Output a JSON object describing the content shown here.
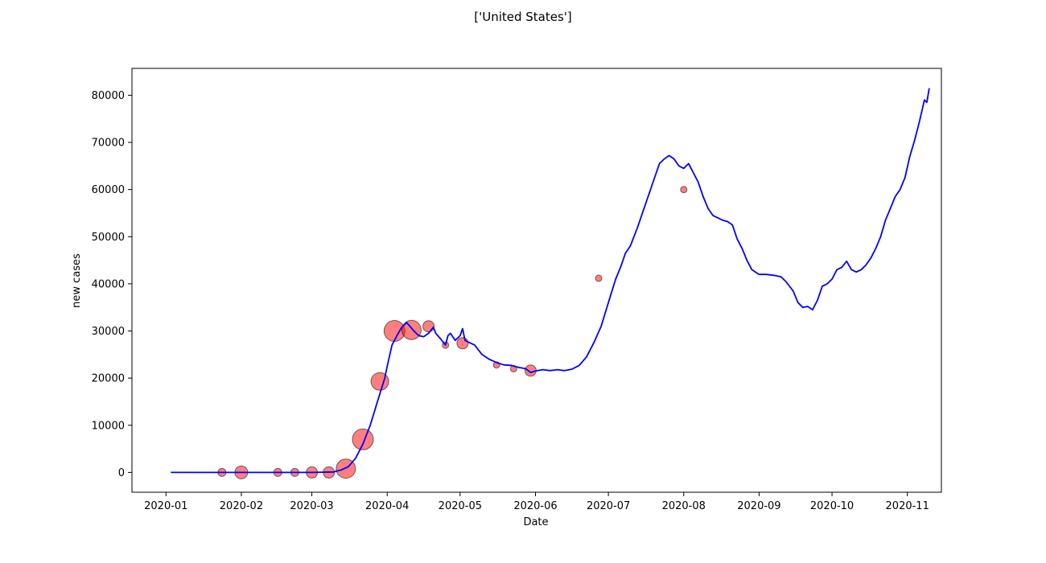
{
  "chart_data": {
    "type": "line",
    "title": "['United States']",
    "xlabel": "Date",
    "ylabel": "new cases",
    "xlim": [
      "2019-12-18",
      "2020-11-15"
    ],
    "ylim": [
      -4200,
      85700
    ],
    "x_ticks": [
      "2020-01",
      "2020-02",
      "2020-03",
      "2020-04",
      "2020-05",
      "2020-06",
      "2020-07",
      "2020-08",
      "2020-09",
      "2020-10",
      "2020-11"
    ],
    "y_ticks": [
      0,
      10000,
      20000,
      30000,
      40000,
      50000,
      60000,
      70000,
      80000
    ],
    "grid": false,
    "line_color": "#0000ff",
    "marker_color": "#ff0000",
    "series": [
      {
        "type": "line",
        "points": [
          [
            "2020-01-03",
            0
          ],
          [
            "2020-01-20",
            0
          ],
          [
            "2020-02-10",
            0
          ],
          [
            "2020-03-01",
            0
          ],
          [
            "2020-03-10",
            100
          ],
          [
            "2020-03-13",
            500
          ],
          [
            "2020-03-16",
            1200
          ],
          [
            "2020-03-19",
            3000
          ],
          [
            "2020-03-22",
            6000
          ],
          [
            "2020-03-25",
            10000
          ],
          [
            "2020-03-28",
            15000
          ],
          [
            "2020-03-31",
            20000
          ],
          [
            "2020-04-01",
            22500
          ],
          [
            "2020-04-03",
            27000
          ],
          [
            "2020-04-05",
            29000
          ],
          [
            "2020-04-07",
            30800
          ],
          [
            "2020-04-09",
            31800
          ],
          [
            "2020-04-10",
            31200
          ],
          [
            "2020-04-12",
            30000
          ],
          [
            "2020-04-14",
            29000
          ],
          [
            "2020-04-16",
            28800
          ],
          [
            "2020-04-18",
            29500
          ],
          [
            "2020-04-20",
            30800
          ],
          [
            "2020-04-21",
            29500
          ],
          [
            "2020-04-23",
            28300
          ],
          [
            "2020-04-25",
            27000
          ],
          [
            "2020-04-26",
            29000
          ],
          [
            "2020-04-27",
            29500
          ],
          [
            "2020-04-29",
            28000
          ],
          [
            "2020-05-01",
            29000
          ],
          [
            "2020-05-02",
            30500
          ],
          [
            "2020-05-03",
            28000
          ],
          [
            "2020-05-05",
            27500
          ],
          [
            "2020-05-07",
            27000
          ],
          [
            "2020-05-10",
            25000
          ],
          [
            "2020-05-13",
            24000
          ],
          [
            "2020-05-16",
            23300
          ],
          [
            "2020-05-19",
            22800
          ],
          [
            "2020-05-22",
            22700
          ],
          [
            "2020-05-25",
            22300
          ],
          [
            "2020-05-28",
            22000
          ],
          [
            "2020-05-30",
            21200
          ],
          [
            "2020-06-01",
            21500
          ],
          [
            "2020-06-04",
            21800
          ],
          [
            "2020-06-07",
            21600
          ],
          [
            "2020-06-10",
            21800
          ],
          [
            "2020-06-13",
            21600
          ],
          [
            "2020-06-16",
            21900
          ],
          [
            "2020-06-19",
            22700
          ],
          [
            "2020-06-22",
            24500
          ],
          [
            "2020-06-25",
            27500
          ],
          [
            "2020-06-28",
            31000
          ],
          [
            "2020-07-01",
            36000
          ],
          [
            "2020-07-04",
            41000
          ],
          [
            "2020-07-06",
            43500
          ],
          [
            "2020-07-08",
            46500
          ],
          [
            "2020-07-10",
            48000
          ],
          [
            "2020-07-13",
            52000
          ],
          [
            "2020-07-16",
            56500
          ],
          [
            "2020-07-18",
            59500
          ],
          [
            "2020-07-20",
            62500
          ],
          [
            "2020-07-22",
            65500
          ],
          [
            "2020-07-24",
            66500
          ],
          [
            "2020-07-26",
            67200
          ],
          [
            "2020-07-28",
            66500
          ],
          [
            "2020-07-30",
            65000
          ],
          [
            "2020-08-01",
            64500
          ],
          [
            "2020-08-03",
            65500
          ],
          [
            "2020-08-05",
            63500
          ],
          [
            "2020-08-07",
            61500
          ],
          [
            "2020-08-09",
            58500
          ],
          [
            "2020-08-11",
            56000
          ],
          [
            "2020-08-13",
            54500
          ],
          [
            "2020-08-15",
            54000
          ],
          [
            "2020-08-17",
            53500
          ],
          [
            "2020-08-19",
            53200
          ],
          [
            "2020-08-21",
            52500
          ],
          [
            "2020-08-23",
            49500
          ],
          [
            "2020-08-25",
            47500
          ],
          [
            "2020-08-27",
            45000
          ],
          [
            "2020-08-29",
            43000
          ],
          [
            "2020-09-01",
            42000
          ],
          [
            "2020-09-04",
            42000
          ],
          [
            "2020-09-07",
            41800
          ],
          [
            "2020-09-10",
            41500
          ],
          [
            "2020-09-12",
            40500
          ],
          [
            "2020-09-15",
            38500
          ],
          [
            "2020-09-17",
            36000
          ],
          [
            "2020-09-19",
            35000
          ],
          [
            "2020-09-21",
            35200
          ],
          [
            "2020-09-23",
            34500
          ],
          [
            "2020-09-25",
            36500
          ],
          [
            "2020-09-27",
            39500
          ],
          [
            "2020-09-29",
            40000
          ],
          [
            "2020-10-01",
            41000
          ],
          [
            "2020-10-03",
            43000
          ],
          [
            "2020-10-05",
            43500
          ],
          [
            "2020-10-07",
            44800
          ],
          [
            "2020-10-09",
            43000
          ],
          [
            "2020-10-11",
            42500
          ],
          [
            "2020-10-13",
            43000
          ],
          [
            "2020-10-15",
            44000
          ],
          [
            "2020-10-17",
            45500
          ],
          [
            "2020-10-19",
            47500
          ],
          [
            "2020-10-21",
            50000
          ],
          [
            "2020-10-23",
            53500
          ],
          [
            "2020-10-25",
            56000
          ],
          [
            "2020-10-27",
            58500
          ],
          [
            "2020-10-29",
            60000
          ],
          [
            "2020-10-31",
            62500
          ],
          [
            "2020-11-02",
            67000
          ],
          [
            "2020-11-04",
            70500
          ],
          [
            "2020-11-06",
            74500
          ],
          [
            "2020-11-08",
            79000
          ],
          [
            "2020-11-09",
            78500
          ],
          [
            "2020-11-10",
            81500
          ]
        ]
      },
      {
        "type": "scatter",
        "points": [
          {
            "x": "2020-01-24",
            "y": 0,
            "size": 5
          },
          {
            "x": "2020-02-01",
            "y": 0,
            "size": 8
          },
          {
            "x": "2020-02-16",
            "y": 0,
            "size": 5
          },
          {
            "x": "2020-02-23",
            "y": 0,
            "size": 5
          },
          {
            "x": "2020-03-01",
            "y": 0,
            "size": 7
          },
          {
            "x": "2020-03-08",
            "y": 0,
            "size": 7
          },
          {
            "x": "2020-03-15",
            "y": 800,
            "size": 12
          },
          {
            "x": "2020-03-22",
            "y": 7000,
            "size": 13
          },
          {
            "x": "2020-03-29",
            "y": 19300,
            "size": 11
          },
          {
            "x": "2020-04-04",
            "y": 30000,
            "size": 13
          },
          {
            "x": "2020-04-11",
            "y": 30200,
            "size": 12
          },
          {
            "x": "2020-04-18",
            "y": 31000,
            "size": 7
          },
          {
            "x": "2020-04-25",
            "y": 27000,
            "size": 4
          },
          {
            "x": "2020-05-02",
            "y": 27400,
            "size": 7
          },
          {
            "x": "2020-05-16",
            "y": 22800,
            "size": 4
          },
          {
            "x": "2020-05-23",
            "y": 22000,
            "size": 4
          },
          {
            "x": "2020-05-30",
            "y": 21600,
            "size": 7
          },
          {
            "x": "2020-06-27",
            "y": 41200,
            "size": 4
          },
          {
            "x": "2020-08-01",
            "y": 60000,
            "size": 4
          }
        ]
      }
    ]
  }
}
